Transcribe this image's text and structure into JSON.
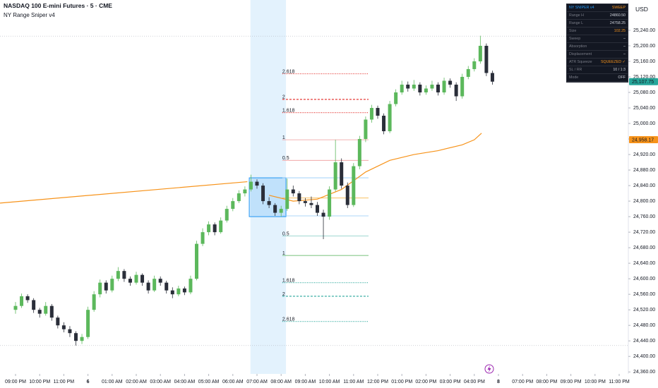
{
  "chart_data": {
    "type": "candlestick",
    "title": "NASDAQ 100 E-mini Futures · 5 · CME",
    "subtitle": "NY Range Sniper v4",
    "currency": "USD",
    "up_color": "#5cb85c",
    "down_color": "#2a2e39",
    "xlim": [
      -0.643,
      25.38
    ],
    "xticks": [
      {
        "value": 0,
        "label": "09:00 PM"
      },
      {
        "value": 1,
        "label": "10:00 PM"
      },
      {
        "value": 2,
        "label": "11:00 PM"
      },
      {
        "value": 3,
        "label": "6"
      },
      {
        "value": 4,
        "label": "01:00 AM"
      },
      {
        "value": 5,
        "label": "02:00 AM"
      },
      {
        "value": 6,
        "label": "03:00 AM"
      },
      {
        "value": 7,
        "label": "04:00 AM"
      },
      {
        "value": 8,
        "label": "05:00 AM"
      },
      {
        "value": 9,
        "label": "06:00 AM"
      },
      {
        "value": 10,
        "label": "07:00 AM"
      },
      {
        "value": 11,
        "label": "08:00 AM"
      },
      {
        "value": 12,
        "label": "09:00 AM"
      },
      {
        "value": 13,
        "label": "10:00 AM"
      },
      {
        "value": 14,
        "label": "11:00 AM"
      },
      {
        "value": 15,
        "label": "12:00 PM"
      },
      {
        "value": 16,
        "label": "01:00 PM"
      },
      {
        "value": 17,
        "label": "02:00 PM"
      },
      {
        "value": 18,
        "label": "03:00 PM"
      },
      {
        "value": 19,
        "label": "04:00 PM"
      },
      {
        "value": 20,
        "label": "8"
      },
      {
        "value": 21,
        "label": "07:00 PM"
      },
      {
        "value": 22,
        "label": "08:00 PM"
      },
      {
        "value": 23,
        "label": "09:00 PM"
      },
      {
        "value": 24,
        "label": "10:00 PM"
      },
      {
        "value": 25,
        "label": "11:00 PM"
      }
    ],
    "ylim": [
      24355,
      25318
    ],
    "yticks": [
      {
        "value": 24360,
        "label": "24,360.00"
      },
      {
        "value": 24400,
        "label": "24,400.00"
      },
      {
        "value": 24440,
        "label": "24,440.00"
      },
      {
        "value": 24480,
        "label": "24,480.00"
      },
      {
        "value": 24520,
        "label": "24,520.00"
      },
      {
        "value": 24560,
        "label": "24,560.00"
      },
      {
        "value": 24600,
        "label": "24,600.00"
      },
      {
        "value": 24640,
        "label": "24,640.00"
      },
      {
        "value": 24680,
        "label": "24,680.00"
      },
      {
        "value": 24720,
        "label": "24,720.00"
      },
      {
        "value": 24760,
        "label": "24,760.00"
      },
      {
        "value": 24800,
        "label": "24,800.00"
      },
      {
        "value": 24840,
        "label": "24,840.00"
      },
      {
        "value": 24880,
        "label": "24,880.00"
      },
      {
        "value": 24920,
        "label": "24,920.00"
      },
      {
        "value": 24960,
        "label": "24,960.00"
      },
      {
        "value": 25000,
        "label": "25,000.00"
      },
      {
        "value": 25040,
        "label": "25,040.00"
      },
      {
        "value": 25080,
        "label": "25,080.00"
      },
      {
        "value": 25120,
        "label": "25,120.00"
      },
      {
        "value": 25160,
        "label": "25,160.00"
      },
      {
        "value": 25200,
        "label": "25,200.00"
      },
      {
        "value": 25240,
        "label": "25,240.00"
      }
    ],
    "x": [
      0,
      0.25,
      0.5,
      0.75,
      1,
      1.25,
      1.5,
      1.75,
      2,
      2.25,
      2.5,
      2.75,
      3,
      3.25,
      3.5,
      3.75,
      4,
      4.25,
      4.5,
      4.75,
      5,
      5.25,
      5.5,
      5.75,
      6,
      6.25,
      6.5,
      6.75,
      7,
      7.25,
      7.5,
      7.75,
      8,
      8.25,
      8.5,
      8.75,
      9,
      9.25,
      9.5,
      9.75,
      10,
      10.25,
      10.5,
      10.75,
      11,
      11.25,
      11.5,
      11.75,
      12,
      12.25,
      12.5,
      12.75,
      13,
      13.25,
      13.5,
      13.75,
      14,
      14.25,
      14.5,
      14.75,
      15,
      15.25,
      15.5,
      15.75,
      16,
      16.25,
      16.5,
      16.75,
      17,
      17.25,
      17.5,
      17.75,
      18,
      18.25,
      18.5,
      18.75,
      19,
      19.25,
      19.5,
      19.75
    ],
    "ohlc": [
      [
        24520,
        24540,
        24510,
        24530
      ],
      [
        24530,
        24562,
        24525,
        24555
      ],
      [
        24555,
        24560,
        24538,
        24545
      ],
      [
        24545,
        24550,
        24512,
        24520
      ],
      [
        24520,
        24525,
        24500,
        24510
      ],
      [
        24510,
        24540,
        24505,
        24530
      ],
      [
        24530,
        24535,
        24492,
        24500
      ],
      [
        24500,
        24505,
        24472,
        24480
      ],
      [
        24480,
        24488,
        24462,
        24470
      ],
      [
        24470,
        24478,
        24450,
        24460
      ],
      [
        24460,
        24465,
        24428,
        24440
      ],
      [
        24440,
        24458,
        24432,
        24450
      ],
      [
        24450,
        24528,
        24445,
        24520
      ],
      [
        24520,
        24568,
        24515,
        24560
      ],
      [
        24560,
        24598,
        24552,
        24590
      ],
      [
        24590,
        24596,
        24562,
        24570
      ],
      [
        24570,
        24608,
        24565,
        24600
      ],
      [
        24600,
        24630,
        24594,
        24620
      ],
      [
        24620,
        24625,
        24592,
        24600
      ],
      [
        24600,
        24606,
        24582,
        24590
      ],
      [
        24590,
        24618,
        24585,
        24610
      ],
      [
        24610,
        24614,
        24582,
        24590
      ],
      [
        24590,
        24596,
        24562,
        24570
      ],
      [
        24570,
        24608,
        24566,
        24600
      ],
      [
        24600,
        24606,
        24582,
        24590
      ],
      [
        24590,
        24595,
        24562,
        24570
      ],
      [
        24570,
        24578,
        24550,
        24560
      ],
      [
        24560,
        24582,
        24555,
        24575
      ],
      [
        24575,
        24580,
        24558,
        24565
      ],
      [
        24565,
        24608,
        24560,
        24600
      ],
      [
        24600,
        24698,
        24596,
        24690
      ],
      [
        24690,
        24730,
        24684,
        24720
      ],
      [
        24720,
        24748,
        24712,
        24740
      ],
      [
        24740,
        24745,
        24712,
        24720
      ],
      [
        24720,
        24758,
        24716,
        24750
      ],
      [
        24750,
        24788,
        24745,
        24780
      ],
      [
        24780,
        24808,
        24774,
        24800
      ],
      [
        24800,
        24828,
        24795,
        24820
      ],
      [
        24820,
        24838,
        24812,
        24830
      ],
      [
        24830,
        24868,
        24825,
        24850
      ],
      [
        24850,
        24856,
        24832,
        24840
      ],
      [
        24840,
        24846,
        24792,
        24800
      ],
      [
        24800,
        24810,
        24782,
        24790
      ],
      [
        24790,
        24795,
        24762,
        24770
      ],
      [
        24770,
        24788,
        24760,
        24780
      ],
      [
        24780,
        24858,
        24775,
        24830
      ],
      [
        24830,
        24840,
        24812,
        24820
      ],
      [
        24820,
        24826,
        24792,
        24800
      ],
      [
        24800,
        24808,
        24786,
        24795
      ],
      [
        24795,
        24812,
        24782,
        24790
      ],
      [
        24790,
        24798,
        24762,
        24770
      ],
      [
        24770,
        24778,
        24702,
        24760
      ],
      [
        24760,
        24838,
        24752,
        24830
      ],
      [
        24830,
        24958,
        24825,
        24900
      ],
      [
        24900,
        24910,
        24832,
        24840
      ],
      [
        24840,
        24848,
        24782,
        24790
      ],
      [
        24790,
        24898,
        24785,
        24890
      ],
      [
        24890,
        24968,
        24882,
        24960
      ],
      [
        24960,
        25018,
        24952,
        25010
      ],
      [
        25010,
        25048,
        25002,
        25040
      ],
      [
        25040,
        25046,
        25012,
        25020
      ],
      [
        25020,
        25026,
        24972,
        24980
      ],
      [
        24980,
        25058,
        24975,
        25050
      ],
      [
        25050,
        25088,
        25044,
        25080
      ],
      [
        25080,
        25110,
        25074,
        25100
      ],
      [
        25100,
        25108,
        25082,
        25090
      ],
      [
        25090,
        25112,
        25084,
        25100
      ],
      [
        25100,
        25106,
        25072,
        25080
      ],
      [
        25080,
        25098,
        25074,
        25090
      ],
      [
        25090,
        25110,
        25084,
        25100
      ],
      [
        25100,
        25106,
        25072,
        25080
      ],
      [
        25080,
        25118,
        25074,
        25110
      ],
      [
        25110,
        25116,
        25092,
        25100
      ],
      [
        25100,
        25106,
        25058,
        25070
      ],
      [
        25070,
        25128,
        25064,
        25120
      ],
      [
        25120,
        25148,
        25114,
        25140
      ],
      [
        25140,
        25168,
        25134,
        25160
      ],
      [
        25160,
        25226,
        25154,
        25200
      ],
      [
        25200,
        25206,
        25122,
        25130
      ],
      [
        25130,
        25136,
        25100,
        25107.75
      ]
    ],
    "line": {
      "color": "#f7931a",
      "x": [
        -0.643,
        9.6,
        9.6,
        10.5,
        11.5,
        12.5,
        13.5,
        14.5,
        15.5,
        16.5,
        17.5,
        18.5,
        19,
        19.3
      ],
      "values": [
        24795,
        24850,
        null,
        24815,
        24800,
        24805,
        24830,
        24875,
        24905,
        24920,
        24930,
        24945,
        24958,
        24975
      ]
    },
    "session": {
      "x": [
        9.73,
        11.2
      ],
      "color": "#e3f2fd"
    },
    "range_box": {
      "x": [
        9.68,
        11.2
      ],
      "values": [
        24760,
        24860
      ],
      "color": "#2196f3"
    },
    "levels": {
      "x": [
        11.05,
        14.62
      ],
      "items": [
        {
          "value": 25128,
          "label": "2.618",
          "color": "#e53935",
          "style": "dotted"
        },
        {
          "value": 25062,
          "label": "2",
          "color": "#e53935",
          "style": "dashed"
        },
        {
          "value": 25028,
          "label": "1.618",
          "color": "#e53935",
          "style": "dotted"
        },
        {
          "value": 24958,
          "label": "1",
          "color": "#ef9a9a",
          "style": "solid"
        },
        {
          "value": 24905,
          "label": "0.5",
          "color": "#ef9a9a",
          "style": "solid"
        },
        {
          "value": 24860,
          "color": "#90caf9",
          "style": "solid"
        },
        {
          "value": 24808,
          "color": "#f7b84b",
          "style": "solid"
        },
        {
          "value": 24762,
          "color": "#90caf9",
          "style": "solid"
        },
        {
          "value": 24710,
          "label": "0.5",
          "color": "#80cbc4",
          "style": "solid"
        },
        {
          "value": 24660,
          "label": "1",
          "color": "#4caf50",
          "style": "solid"
        },
        {
          "value": 24590,
          "label": "1.618",
          "color": "#26a69a",
          "style": "dotted"
        },
        {
          "value": 24555,
          "label": "2",
          "color": "#26a69a",
          "style": "dashed"
        },
        {
          "value": 24490,
          "label": "2.618",
          "color": "#26a69a",
          "style": "dotted"
        }
      ]
    },
    "reference_lines": [
      25225,
      24428
    ],
    "price_badges": [
      {
        "value": 25107.75,
        "label": "25,107.75",
        "color": "#26a69a"
      },
      {
        "value": 24958.17,
        "label": "24,958.17",
        "color": "#f7931a"
      }
    ]
  },
  "panel": {
    "header": [
      "NY SNIPER v4",
      "SWEEP"
    ],
    "rows": [
      [
        "Range H",
        "24860.50"
      ],
      [
        "Range L",
        "24758.25"
      ],
      [
        "Size",
        "102.25"
      ],
      [
        "Sweep",
        "–"
      ],
      [
        "Absorption",
        "–"
      ],
      [
        "Displacement",
        "–"
      ],
      [
        "ATR Squeeze",
        "SQUEEZED ✓"
      ],
      [
        "SL / RR",
        "10 / 1:3"
      ],
      [
        "Mode",
        "OFF"
      ]
    ]
  }
}
